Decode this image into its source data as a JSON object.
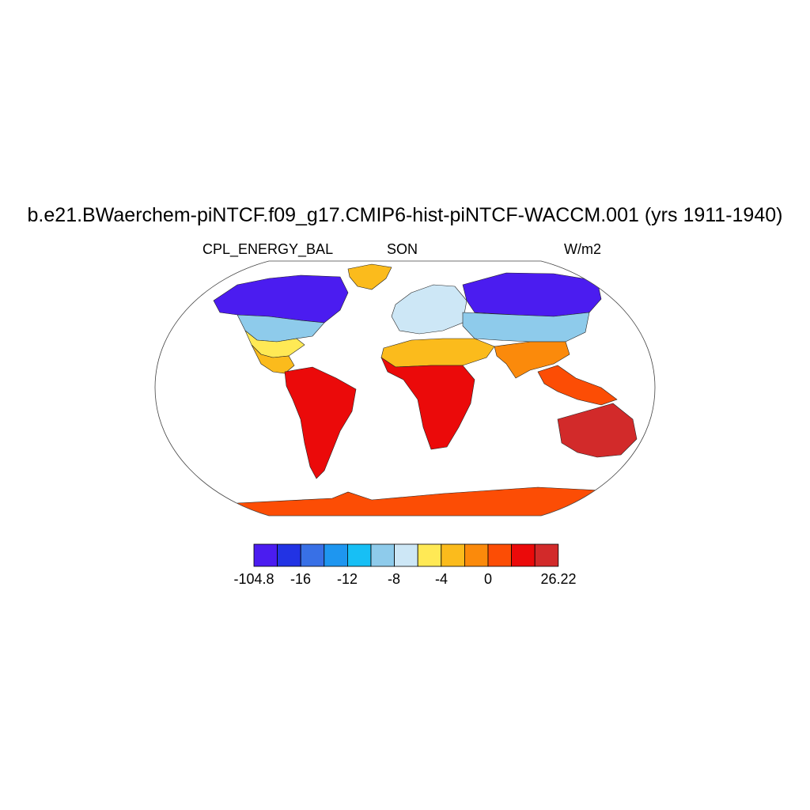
{
  "title": "b.e21.BWaerchem-piNTCF.f09_g17.CMIP6-hist-piNTCF-WACCM.001 (yrs 1911-1940)",
  "subtitle_left": "CPL_ENERGY_BAL",
  "subtitle_center": "SON",
  "subtitle_right": "W/m2",
  "colorbar": {
    "colors": [
      "#4b1cf0",
      "#2233e4",
      "#3870e6",
      "#1e96f0",
      "#17bff5",
      "#8ecbeb",
      "#cde7f6",
      "#ffe955",
      "#fbbb1c",
      "#fb8a0b",
      "#fc4d05",
      "#eb0a0a",
      "#d22a2a"
    ],
    "labels": [
      "-104.8",
      "-16",
      "-12",
      "-8",
      "-4",
      "0",
      "26.22"
    ]
  },
  "map_data": {
    "projection": "robinson",
    "variable": "CPL_ENERGY_BAL",
    "units": "W/m2",
    "season": "SON",
    "regions": [
      {
        "id": "greenland",
        "level": 8
      },
      {
        "id": "north-america-north",
        "level": 0
      },
      {
        "id": "north-america-mid",
        "level": 5
      },
      {
        "id": "north-america-south",
        "level": 7
      },
      {
        "id": "central-america",
        "level": 8
      },
      {
        "id": "south-america",
        "level": 11
      },
      {
        "id": "europe",
        "level": 6
      },
      {
        "id": "russia-north",
        "level": 0
      },
      {
        "id": "asia-mid",
        "level": 5
      },
      {
        "id": "sahara",
        "level": 8
      },
      {
        "id": "africa-central",
        "level": 11
      },
      {
        "id": "india-china-south",
        "level": 9
      },
      {
        "id": "southeast-asia",
        "level": 10
      },
      {
        "id": "australia",
        "level": 12
      },
      {
        "id": "antarctica",
        "level": 10
      }
    ]
  }
}
